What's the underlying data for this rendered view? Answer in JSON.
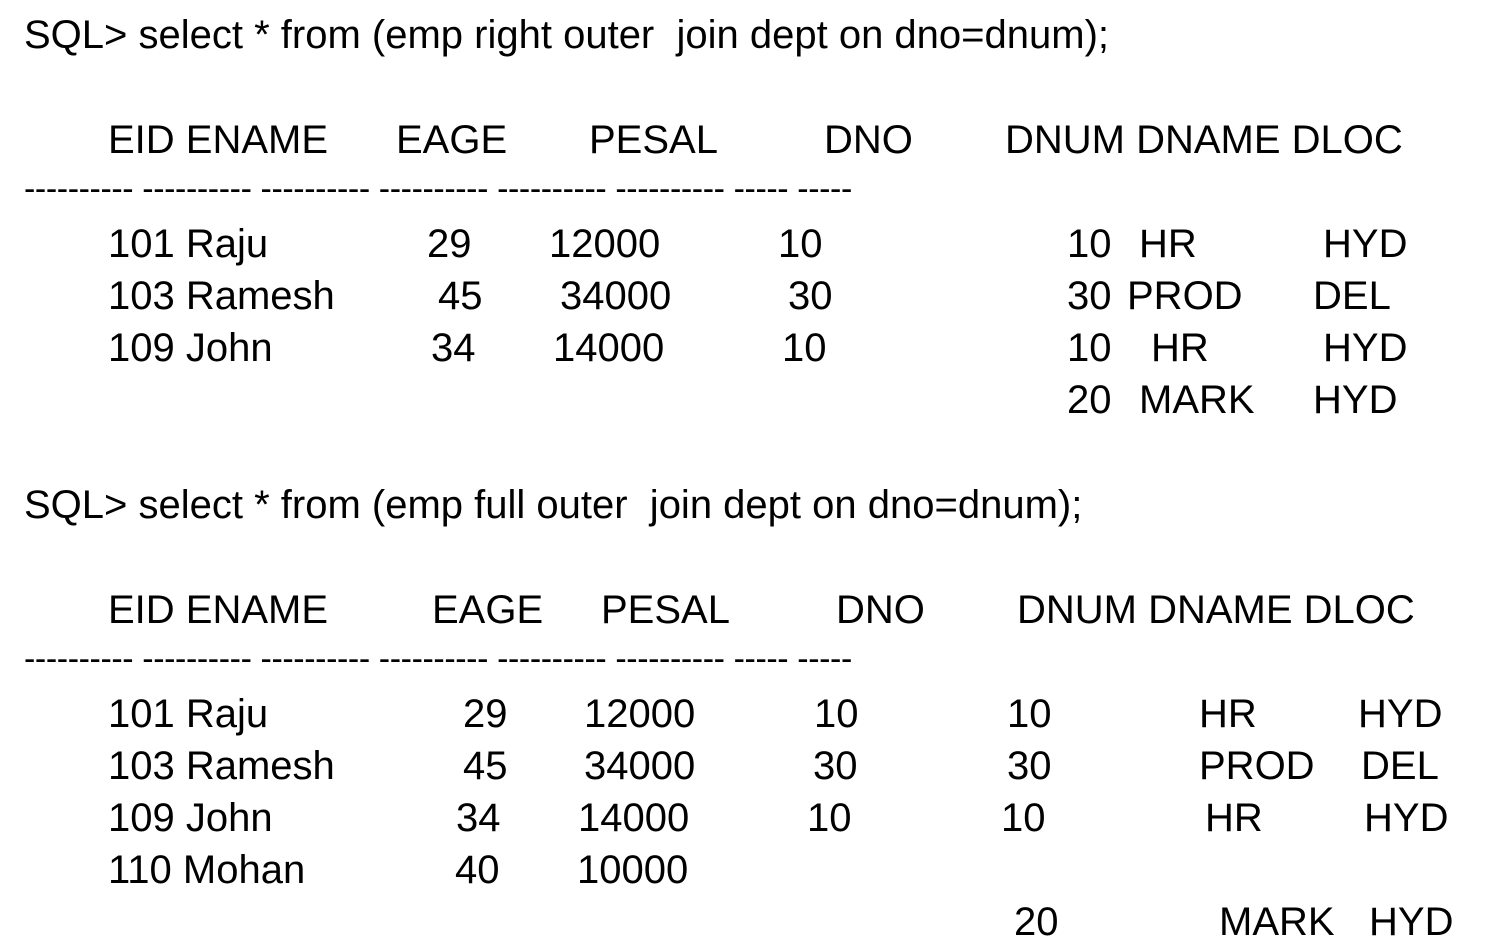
{
  "blocks": [
    {
      "command": "SQL> select * from (emp right outer  join dept on dno=dnum);",
      "headers": {
        "eid_ename": "EID ENAME",
        "eage": "EAGE",
        "pesal": "PESAL",
        "dno": "DNO",
        "dnum_dname_dloc": "DNUM DNAME DLOC"
      },
      "separator": "---------- ---------- ---------- ---------- ---------- ---------- ----- -----",
      "rows": [
        {
          "eid_ename": "101 Raju",
          "eage": "29",
          "pesal": "12000",
          "dno": "10",
          "dnum": "10",
          "dname": "HR",
          "dloc": "HYD"
        },
        {
          "eid_ename": "103 Ramesh",
          "eage": "45",
          "pesal": "34000",
          "dno": "30",
          "dnum": "30",
          "dname": "PROD",
          "dloc": "DEL"
        },
        {
          "eid_ename": "109 John",
          "eage": "34",
          "pesal": "14000",
          "dno": "10",
          "dnum": "10",
          "dname": "HR",
          "dloc": "HYD"
        },
        {
          "eid_ename": "",
          "eage": "",
          "pesal": "",
          "dno": "",
          "dnum": "20",
          "dname": "MARK",
          "dloc": "HYD"
        }
      ]
    },
    {
      "command": "SQL> select * from (emp full outer  join dept on dno=dnum);",
      "headers": {
        "eid_ename": "EID ENAME",
        "eage": "EAGE",
        "pesal": "PESAL",
        "dno": "DNO",
        "dnum_dname_dloc": "DNUM DNAME DLOC"
      },
      "separator": "---------- ---------- ---------- ---------- ---------- ---------- ----- -----",
      "rows": [
        {
          "eid_ename": "101 Raju",
          "eage": "29",
          "pesal": "12000",
          "dno": "10",
          "dnum": "10",
          "dname": "HR",
          "dloc": "HYD"
        },
        {
          "eid_ename": "103 Ramesh",
          "eage": "45",
          "pesal": "34000",
          "dno": "30",
          "dnum": "30",
          "dname": "PROD",
          "dloc": "DEL"
        },
        {
          "eid_ename": "109 John",
          "eage": "34",
          "pesal": "14000",
          "dno": "10",
          "dnum": "10",
          "dname": "HR",
          "dloc": "HYD"
        },
        {
          "eid_ename": "110 Mohan",
          "eage": "40",
          "pesal": "10000",
          "dno": "",
          "dnum": "",
          "dname": "",
          "dloc": ""
        },
        {
          "eid_ename": "",
          "eage": "",
          "pesal": "",
          "dno": "",
          "dnum": "20",
          "dname": "MARK",
          "dloc": "HYD"
        }
      ]
    }
  ]
}
